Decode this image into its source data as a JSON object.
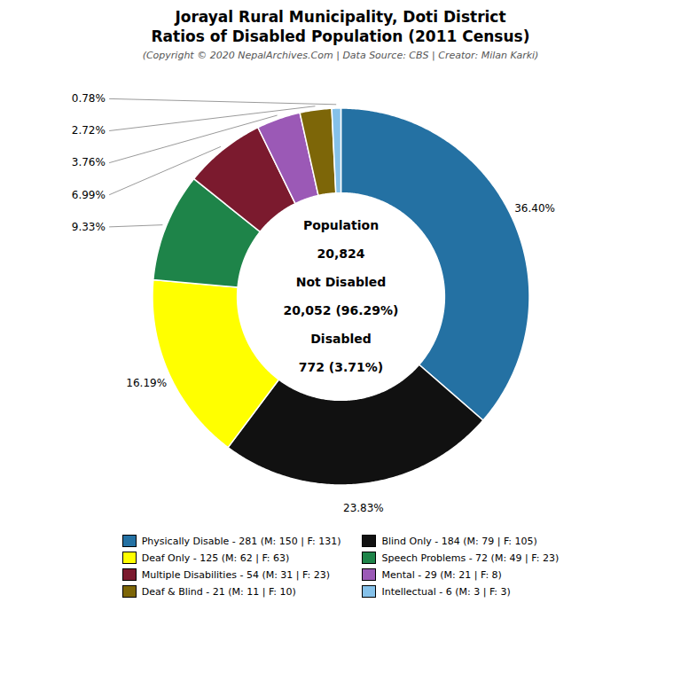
{
  "chart_data": {
    "type": "pie",
    "title": "Jorayal Rural Municipality, Doti District\nRatios of Disabled Population (2011 Census)",
    "subtitle": "(Copyright © 2020 NepalArchives.Com | Data Source: CBS | Creator: Milan Karki)",
    "categories": [
      "Physically Disable - 281 (M: 150 | F: 131)",
      "Blind Only - 184 (M: 79 | F: 105)",
      "Deaf Only - 125 (M: 62 | F: 63)",
      "Speech Problems - 72 (M: 49 | F: 23)",
      "Multiple Disabilities - 54 (M: 31 | F: 23)",
      "Mental - 29 (M: 21 | F: 8)",
      "Deaf & Blind - 21 (M: 11 | F: 10)",
      "Intellectual - 6 (M: 3 | F: 3)"
    ],
    "values": [
      36.4,
      23.83,
      16.19,
      9.33,
      6.99,
      3.76,
      2.72,
      0.78
    ],
    "value_labels": [
      "36.40%",
      "23.83%",
      "16.19%",
      "9.33%",
      "6.99%",
      "3.76%",
      "2.72%",
      "0.78%"
    ],
    "colors": [
      "#2471a3",
      "#111111",
      "#ffff00",
      "#1e8449",
      "#7b1a2e",
      "#9b59b6",
      "#7d6608",
      "#85c1e9"
    ],
    "data_labels": true,
    "legend": "bottom",
    "annotations": [
      "Population",
      "20,824",
      "Not Disabled",
      "20,052 (96.29%)",
      "Disabled",
      "772 (3.71%)"
    ]
  }
}
